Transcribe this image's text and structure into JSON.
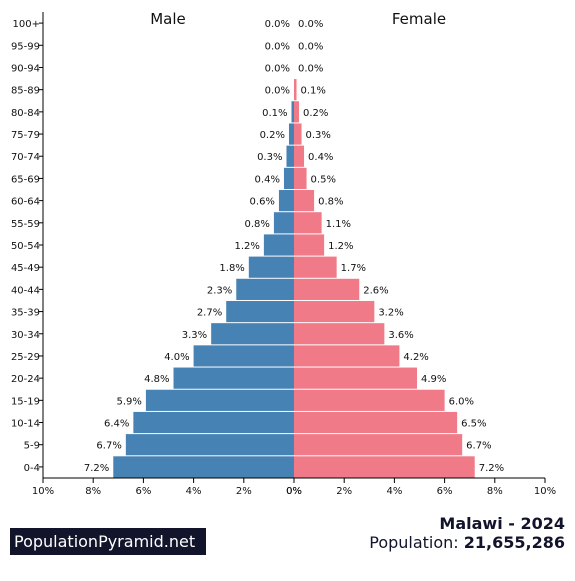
{
  "chart_data": {
    "type": "bar",
    "orientation": "horizontal",
    "categories": [
      "100+",
      "95-99",
      "90-94",
      "85-89",
      "80-84",
      "75-79",
      "70-74",
      "65-69",
      "60-64",
      "55-59",
      "50-54",
      "45-49",
      "40-44",
      "35-39",
      "30-34",
      "25-29",
      "20-24",
      "15-19",
      "10-14",
      "5-9",
      "0-4"
    ],
    "series": [
      {
        "name": "Male",
        "color": "#4682b4",
        "values": [
          0.0,
          0.0,
          0.0,
          0.0,
          0.1,
          0.2,
          0.3,
          0.4,
          0.6,
          0.8,
          1.2,
          1.8,
          2.3,
          2.7,
          3.3,
          4.0,
          4.8,
          5.9,
          6.4,
          6.7,
          7.2
        ]
      },
      {
        "name": "Female",
        "color": "#f07a88",
        "values": [
          0.0,
          0.0,
          0.0,
          0.1,
          0.2,
          0.3,
          0.4,
          0.5,
          0.8,
          1.1,
          1.2,
          1.7,
          2.6,
          3.2,
          3.6,
          4.2,
          4.9,
          6.0,
          6.5,
          6.7,
          7.2
        ]
      }
    ],
    "value_labels": {
      "male": [
        "0.0%",
        "0.0%",
        "0.0%",
        "0.0%",
        "0.1%",
        "0.2%",
        "0.3%",
        "0.4%",
        "0.6%",
        "0.8%",
        "1.2%",
        "1.8%",
        "2.3%",
        "2.7%",
        "3.3%",
        "4.0%",
        "4.8%",
        "5.9%",
        "6.4%",
        "6.7%",
        "7.2%"
      ],
      "female": [
        "0.0%",
        "0.0%",
        "0.0%",
        "0.1%",
        "0.2%",
        "0.3%",
        "0.4%",
        "0.5%",
        "0.8%",
        "1.1%",
        "1.2%",
        "1.7%",
        "2.6%",
        "3.2%",
        "3.6%",
        "4.2%",
        "4.9%",
        "6.0%",
        "6.5%",
        "6.7%",
        "7.2%"
      ]
    },
    "xlim": [
      0,
      10
    ],
    "x_ticks_left": [
      "10%",
      "8%",
      "6%",
      "4%",
      "2%",
      "0%"
    ],
    "x_ticks_right": [
      "0%",
      "2%",
      "4%",
      "6%",
      "8%",
      "10%"
    ],
    "grid": false
  },
  "brand": "PopulationPyramid.net",
  "country_year": "Malawi - 2024",
  "population_label": "Population:",
  "population_value": "21,655,286"
}
